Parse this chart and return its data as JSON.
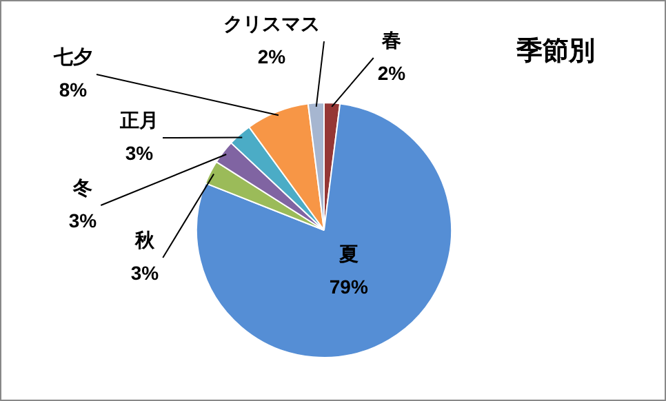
{
  "chart_data": {
    "type": "pie",
    "title": "季節別",
    "categories": [
      "春",
      "夏",
      "秋",
      "冬",
      "正月",
      "七夕",
      "クリスマス"
    ],
    "values": [
      2,
      79,
      3,
      3,
      3,
      8,
      2
    ],
    "value_labels": [
      "2%",
      "79%",
      "3%",
      "3%",
      "3%",
      "8%",
      "2%"
    ],
    "colors": [
      "#953735",
      "#558ed5",
      "#9bbb59",
      "#8064a2",
      "#4bacc6",
      "#f79646",
      "#a6b6d0"
    ],
    "legend": false
  }
}
